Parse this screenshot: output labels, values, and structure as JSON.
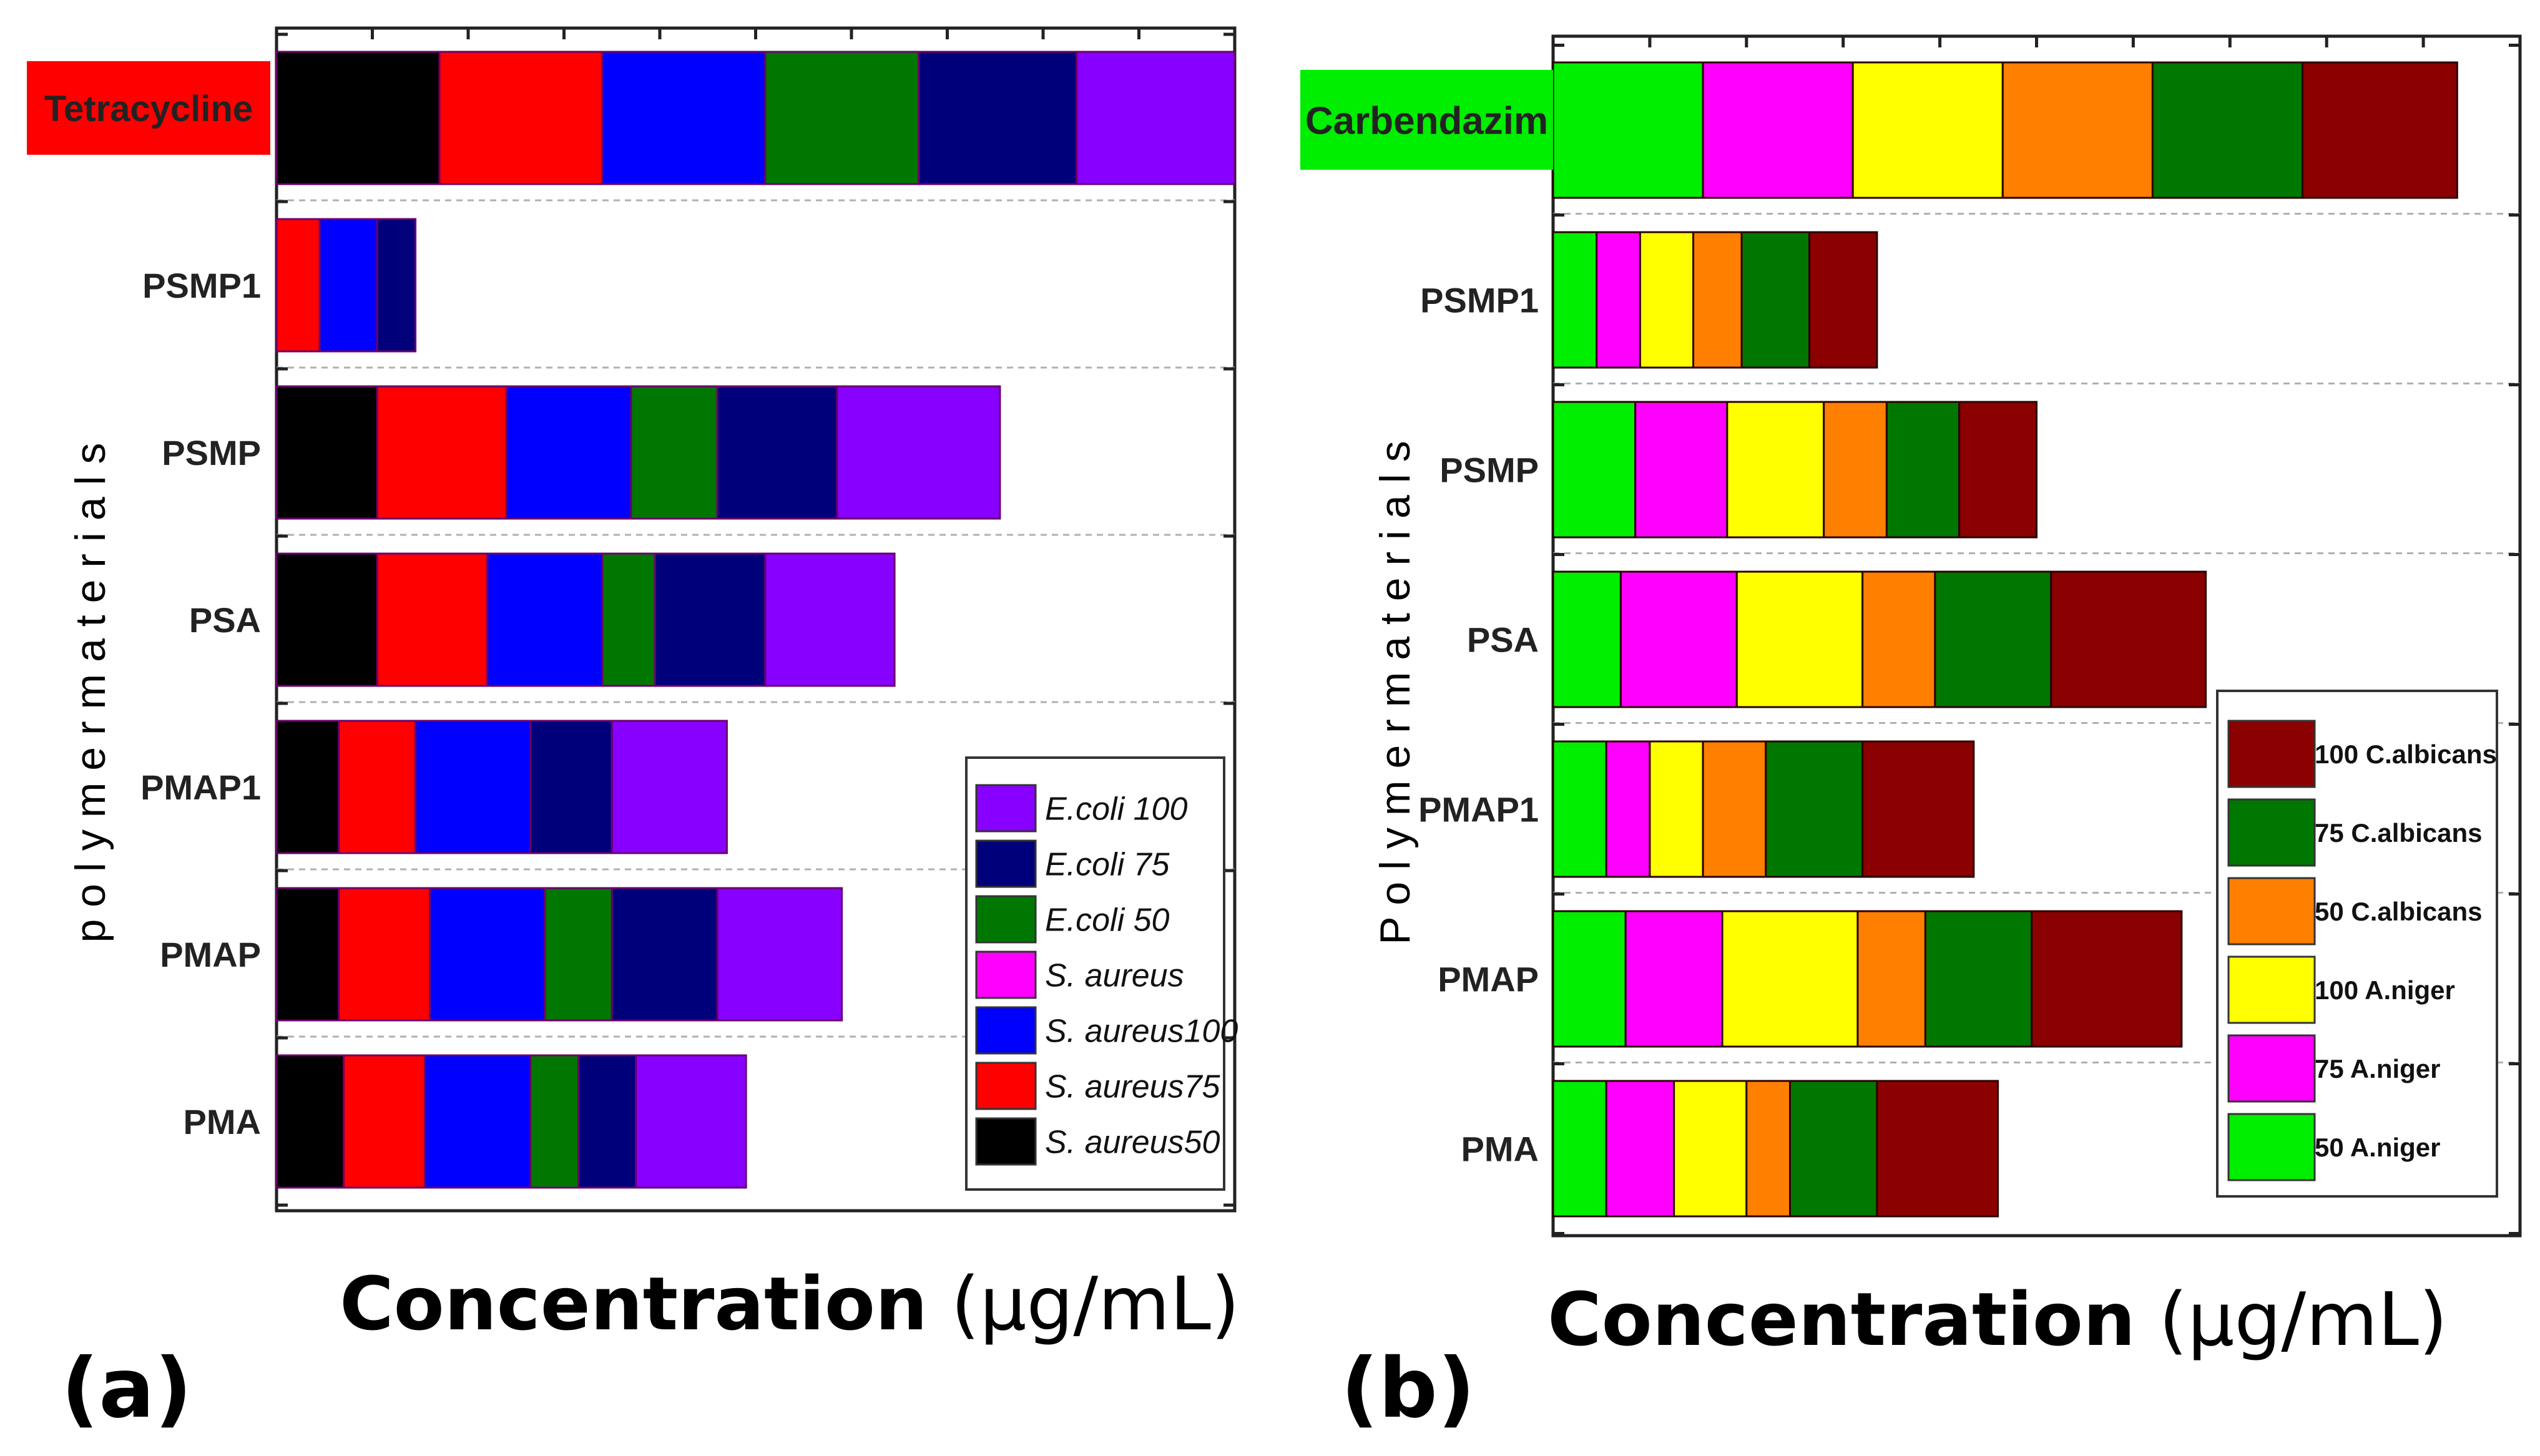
{
  "figure": {
    "panels": [
      {
        "letter": "(a)",
        "ylabel": "p o l y m e r  m a t e r i a l s",
        "xlabel_bold": "Concentration",
        "xlabel_unit": " (µg/mL)"
      },
      {
        "letter": "(b)",
        "ylabel": "P o l y m e r  m a t e r i a l s",
        "xlabel_bold": "Concentration",
        "xlabel_unit": " (µg/mL)"
      }
    ]
  },
  "chart_data": [
    {
      "type": "bar",
      "stacked": true,
      "orientation": "horizontal",
      "title": "",
      "xlabel": "Concentration (µg/mL)",
      "ylabel": "polymer materials",
      "xlim": [
        0,
        100
      ],
      "categories": [
        "Tetracycline",
        "PSMP1",
        "PSMP",
        "PSA",
        "PMAP1",
        "PMAP",
        "PMA"
      ],
      "highlight": {
        "category": "Tetracycline",
        "color": "#ff0000"
      },
      "series": [
        {
          "name": "S. aureus50",
          "color": "#000000",
          "values": [
            17.0,
            0.0,
            10.5,
            10.5,
            6.5,
            6.5,
            7.0
          ]
        },
        {
          "name": "S. aureus75",
          "color": "#ff0000",
          "values": [
            17.0,
            4.5,
            13.5,
            11.5,
            8.0,
            9.5,
            8.5
          ]
        },
        {
          "name": "S. aureus100",
          "color": "#0000ff",
          "values": [
            17.0,
            6.0,
            13.0,
            12.0,
            12.0,
            12.0,
            11.0
          ]
        },
        {
          "name": "S. aureus",
          "color": "#ff00ff",
          "values": [
            0,
            0,
            0,
            0,
            0,
            0,
            0
          ]
        },
        {
          "name": "E.coli 50",
          "color": "#007700",
          "values": [
            16.0,
            0.0,
            9.0,
            5.5,
            0.0,
            7.0,
            5.0
          ]
        },
        {
          "name": "E.coli 75",
          "color": "#00007a",
          "values": [
            16.5,
            4.0,
            12.5,
            11.5,
            8.5,
            11.0,
            6.0
          ]
        },
        {
          "name": "E.coli 100",
          "color": "#8800ff",
          "values": [
            16.5,
            0.0,
            17.0,
            13.5,
            12.0,
            13.0,
            11.5
          ]
        }
      ],
      "legend": {
        "position": "bottom-right",
        "entries": [
          "E.coli 100",
          "E.coli 75",
          "E.coli 50",
          "S. aureus",
          "S. aureus100",
          "S. aureus75",
          "S. aureus50"
        ]
      }
    },
    {
      "type": "bar",
      "stacked": true,
      "orientation": "horizontal",
      "title": "",
      "xlabel": "Concentration (µg/mL)",
      "ylabel": "Polymer materials",
      "xlim": [
        0,
        100
      ],
      "categories": [
        "Carbendazim",
        "PSMP1",
        "PSMP",
        "PSA",
        "PMAP1",
        "PMAP",
        "PMA"
      ],
      "highlight": {
        "category": "Carbendazim",
        "color": "#00ee00"
      },
      "series": [
        {
          "name": "50 A.niger",
          "color": "#00ee00",
          "values": [
            15.5,
            4.5,
            8.5,
            7.0,
            5.5,
            7.5,
            5.5
          ]
        },
        {
          "name": "75 A.niger",
          "color": "#ff00ff",
          "values": [
            15.5,
            4.5,
            9.5,
            12.0,
            4.5,
            10.0,
            7.0
          ]
        },
        {
          "name": "100 A.niger",
          "color": "#ffff00",
          "values": [
            15.5,
            5.5,
            10.0,
            13.0,
            5.5,
            14.0,
            7.5
          ]
        },
        {
          "name": "50 C.albicans",
          "color": "#ff7f00",
          "values": [
            15.5,
            5.0,
            6.5,
            7.5,
            6.5,
            7.0,
            4.5
          ]
        },
        {
          "name": "75 C.albicans",
          "color": "#007700",
          "values": [
            15.5,
            7.0,
            7.5,
            12.0,
            10.0,
            11.0,
            9.0
          ]
        },
        {
          "name": "100 C.albicans",
          "color": "#8b0000",
          "values": [
            16.0,
            7.0,
            8.0,
            16.0,
            11.5,
            15.5,
            12.5
          ]
        }
      ],
      "legend": {
        "position": "bottom-right",
        "entries": [
          "100 C.albicans",
          "75 C.albicans",
          "50 C.albicans",
          "100 A.niger",
          "75  A.niger",
          "50 A.niger"
        ]
      }
    }
  ]
}
